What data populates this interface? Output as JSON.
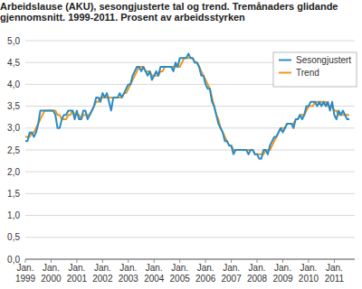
{
  "chart_data": {
    "type": "line",
    "title": "Arbeidslause (AKU), sesongjusterte tal og trend. Tremånaders glidande gjennomsnitt. 1999-2011. Prosent av arbeidsstyrken",
    "categories": [
      "Jan. 1999",
      null,
      null,
      null,
      null,
      null,
      null,
      null,
      null,
      null,
      null,
      null,
      "Jan. 2000",
      null,
      null,
      null,
      null,
      null,
      null,
      null,
      null,
      null,
      null,
      null,
      "Jan. 2001",
      null,
      null,
      null,
      null,
      null,
      null,
      null,
      null,
      null,
      null,
      null,
      "Jan. 2002",
      null,
      null,
      null,
      null,
      null,
      null,
      null,
      null,
      null,
      null,
      null,
      "Jan. 2003",
      null,
      null,
      null,
      null,
      null,
      null,
      null,
      null,
      null,
      null,
      null,
      "Jan. 2004",
      null,
      null,
      null,
      null,
      null,
      null,
      null,
      null,
      null,
      null,
      null,
      "Jan. 2005",
      null,
      null,
      null,
      null,
      null,
      null,
      null,
      null,
      null,
      null,
      null,
      "Jan. 2006",
      null,
      null,
      null,
      null,
      null,
      null,
      null,
      null,
      null,
      null,
      null,
      "Jan. 2007",
      null,
      null,
      null,
      null,
      null,
      null,
      null,
      null,
      null,
      null,
      null,
      "Jan. 2008",
      null,
      null,
      null,
      null,
      null,
      null,
      null,
      null,
      null,
      null,
      null,
      "Jan. 2009",
      null,
      null,
      null,
      null,
      null,
      null,
      null,
      null,
      null,
      null,
      null,
      "Jan. 2010",
      null,
      null,
      null,
      null,
      null,
      null,
      null,
      null,
      null,
      null,
      null,
      "Jan. 2011",
      null,
      null,
      null,
      null,
      null,
      null,
      null
    ],
    "series": [
      {
        "name": "Sesongjustert",
        "color": "#2a8cc4",
        "values": [
          2.7,
          2.7,
          2.9,
          2.9,
          2.8,
          2.9,
          3.1,
          3.4,
          3.4,
          3.4,
          3.4,
          3.4,
          3.4,
          3.4,
          3.3,
          3.0,
          3.0,
          3.2,
          3.3,
          3.3,
          3.4,
          3.4,
          3.4,
          3.2,
          3.4,
          3.2,
          3.2,
          3.4,
          3.4,
          3.2,
          3.3,
          3.4,
          3.5,
          3.7,
          3.7,
          3.6,
          3.8,
          3.7,
          3.8,
          3.6,
          3.4,
          3.7,
          3.7,
          3.7,
          3.8,
          3.7,
          3.8,
          3.9,
          4.0,
          4.0,
          4.2,
          4.3,
          4.4,
          4.4,
          4.3,
          4.4,
          4.3,
          4.2,
          4.3,
          4.1,
          4.2,
          4.3,
          4.2,
          4.4,
          4.4,
          4.4,
          4.4,
          4.4,
          4.4,
          4.3,
          4.5,
          4.4,
          4.6,
          4.6,
          4.6,
          4.6,
          4.7,
          4.6,
          4.6,
          4.5,
          4.5,
          4.4,
          4.2,
          4.2,
          4.0,
          3.9,
          3.9,
          3.6,
          3.5,
          3.3,
          3.1,
          3.0,
          2.9,
          2.7,
          2.7,
          2.6,
          2.6,
          2.4,
          2.5,
          2.5,
          2.5,
          2.5,
          2.5,
          2.5,
          2.4,
          2.5,
          2.5,
          2.4,
          2.4,
          2.3,
          2.3,
          2.5,
          2.5,
          2.4,
          2.6,
          2.7,
          2.8,
          2.8,
          2.9,
          3.0,
          2.9,
          3.0,
          3.1,
          3.1,
          3.1,
          3.0,
          3.2,
          3.2,
          3.3,
          3.2,
          3.3,
          3.5,
          3.5,
          3.6,
          3.6,
          3.6,
          3.5,
          3.6,
          3.5,
          3.6,
          3.5,
          3.6,
          3.4,
          3.6,
          3.3,
          3.2,
          3.4,
          3.3,
          3.4,
          3.3,
          3.2,
          3.2
        ]
      },
      {
        "name": "Trend",
        "color": "#f0961e",
        "values": [
          2.8,
          2.8,
          2.8,
          2.9,
          2.9,
          3.0,
          3.1,
          3.2,
          3.3,
          3.4,
          3.4,
          3.4,
          3.4,
          3.4,
          3.4,
          3.3,
          3.3,
          3.2,
          3.2,
          3.2,
          3.3,
          3.3,
          3.4,
          3.3,
          3.3,
          3.3,
          3.2,
          3.3,
          3.3,
          3.3,
          3.3,
          3.4,
          3.5,
          3.6,
          3.6,
          3.7,
          3.7,
          3.7,
          3.7,
          3.7,
          3.7,
          3.7,
          3.7,
          3.7,
          3.7,
          3.7,
          3.8,
          3.8,
          3.9,
          4.0,
          4.1,
          4.2,
          4.3,
          4.4,
          4.4,
          4.4,
          4.3,
          4.3,
          4.3,
          4.2,
          4.2,
          4.2,
          4.2,
          4.3,
          4.3,
          4.4,
          4.4,
          4.4,
          4.4,
          4.4,
          4.4,
          4.4,
          4.4,
          4.5,
          4.6,
          4.6,
          4.6,
          4.6,
          4.6,
          4.5,
          4.5,
          4.4,
          4.3,
          4.2,
          4.1,
          4.0,
          3.9,
          3.7,
          3.5,
          3.3,
          3.2,
          3.0,
          2.9,
          2.8,
          2.7,
          2.6,
          2.6,
          2.5,
          2.5,
          2.5,
          2.5,
          2.5,
          2.5,
          2.5,
          2.5,
          2.5,
          2.5,
          2.4,
          2.4,
          2.4,
          2.4,
          2.4,
          2.5,
          2.5,
          2.5,
          2.6,
          2.7,
          2.8,
          2.9,
          3.0,
          3.0,
          3.0,
          3.1,
          3.1,
          3.1,
          3.1,
          3.2,
          3.2,
          3.3,
          3.3,
          3.3,
          3.4,
          3.5,
          3.5,
          3.5,
          3.6,
          3.6,
          3.6,
          3.6,
          3.6,
          3.6,
          3.5,
          3.5,
          3.5,
          3.4,
          3.4,
          3.3,
          3.3,
          3.3,
          3.3,
          3.3,
          3.3
        ]
      }
    ],
    "ylim": [
      0,
      5
    ],
    "yticks": [
      {
        "value": 0,
        "label": "0,0"
      },
      {
        "value": 0.5,
        "label": "0,5"
      },
      {
        "value": 1,
        "label": "1,0"
      },
      {
        "value": 1.5,
        "label": "1,5"
      },
      {
        "value": 2,
        "label": "2,0"
      },
      {
        "value": 2.5,
        "label": "2,5"
      },
      {
        "value": 3,
        "label": "3,0"
      },
      {
        "value": 3.5,
        "label": "3,5"
      },
      {
        "value": 4,
        "label": "4,0"
      },
      {
        "value": 4.5,
        "label": "4,5"
      },
      {
        "value": 5,
        "label": "5,0"
      }
    ],
    "grid": true,
    "legend": "upper right"
  }
}
